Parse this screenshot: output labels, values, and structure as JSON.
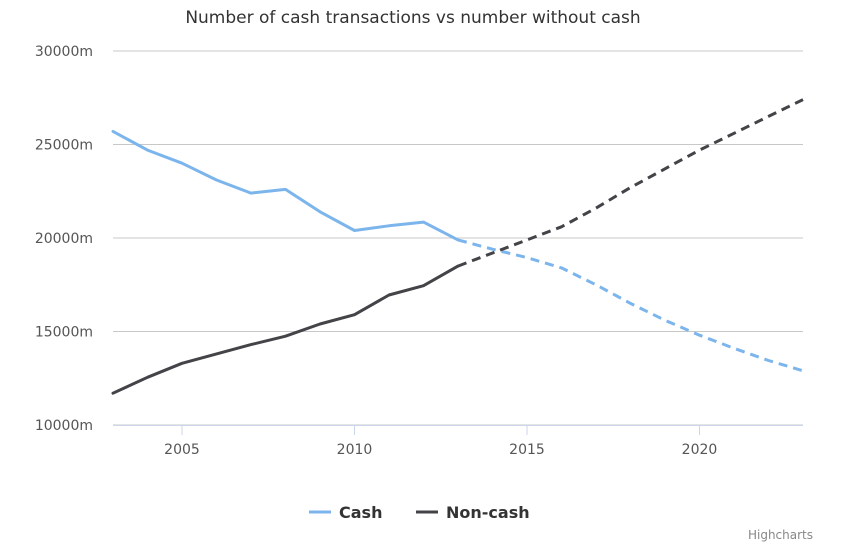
{
  "chart_data": {
    "type": "line",
    "title": "Number of cash transactions vs number without cash",
    "xlabel": "",
    "ylabel": "",
    "xlim": [
      2003,
      2023
    ],
    "ylim": [
      10000,
      30000
    ],
    "x_ticks": [
      2005,
      2010,
      2015,
      2020
    ],
    "x_tick_labels": [
      "2005",
      "2010",
      "2015",
      "2020"
    ],
    "y_ticks": [
      10000,
      15000,
      20000,
      25000,
      30000
    ],
    "y_tick_labels": [
      "10000m",
      "15000m",
      "20000m",
      "25000m",
      "30000m"
    ],
    "grid": true,
    "legend_position": "bottom-center",
    "series": [
      {
        "name": "Cash",
        "color": "#7cb5ec",
        "x": [
          2003,
          2004,
          2005,
          2006,
          2007,
          2008,
          2009,
          2010,
          2011,
          2012,
          2013
        ],
        "values": [
          25700,
          24700,
          24000,
          23100,
          22400,
          22600,
          21400,
          20400,
          20650,
          20850,
          19900
        ],
        "forecast_x": [
          2013,
          2014,
          2015,
          2016,
          2017,
          2018,
          2019,
          2020,
          2021,
          2022,
          2023
        ],
        "forecast_values": [
          19900,
          19400,
          18950,
          18400,
          17500,
          16500,
          15600,
          14800,
          14100,
          13450,
          12900
        ]
      },
      {
        "name": "Non-cash",
        "color": "#434348",
        "x": [
          2003,
          2004,
          2005,
          2006,
          2007,
          2008,
          2009,
          2010,
          2011,
          2012,
          2013
        ],
        "values": [
          11700,
          12550,
          13300,
          13800,
          14300,
          14750,
          15400,
          15900,
          16950,
          17450,
          18500
        ],
        "forecast_x": [
          2013,
          2014,
          2015,
          2016,
          2017,
          2018,
          2019,
          2020,
          2021,
          2022,
          2023
        ],
        "forecast_values": [
          18500,
          19200,
          19900,
          20600,
          21600,
          22700,
          23700,
          24700,
          25600,
          26500,
          27400
        ]
      }
    ],
    "credits": "Highcharts"
  }
}
